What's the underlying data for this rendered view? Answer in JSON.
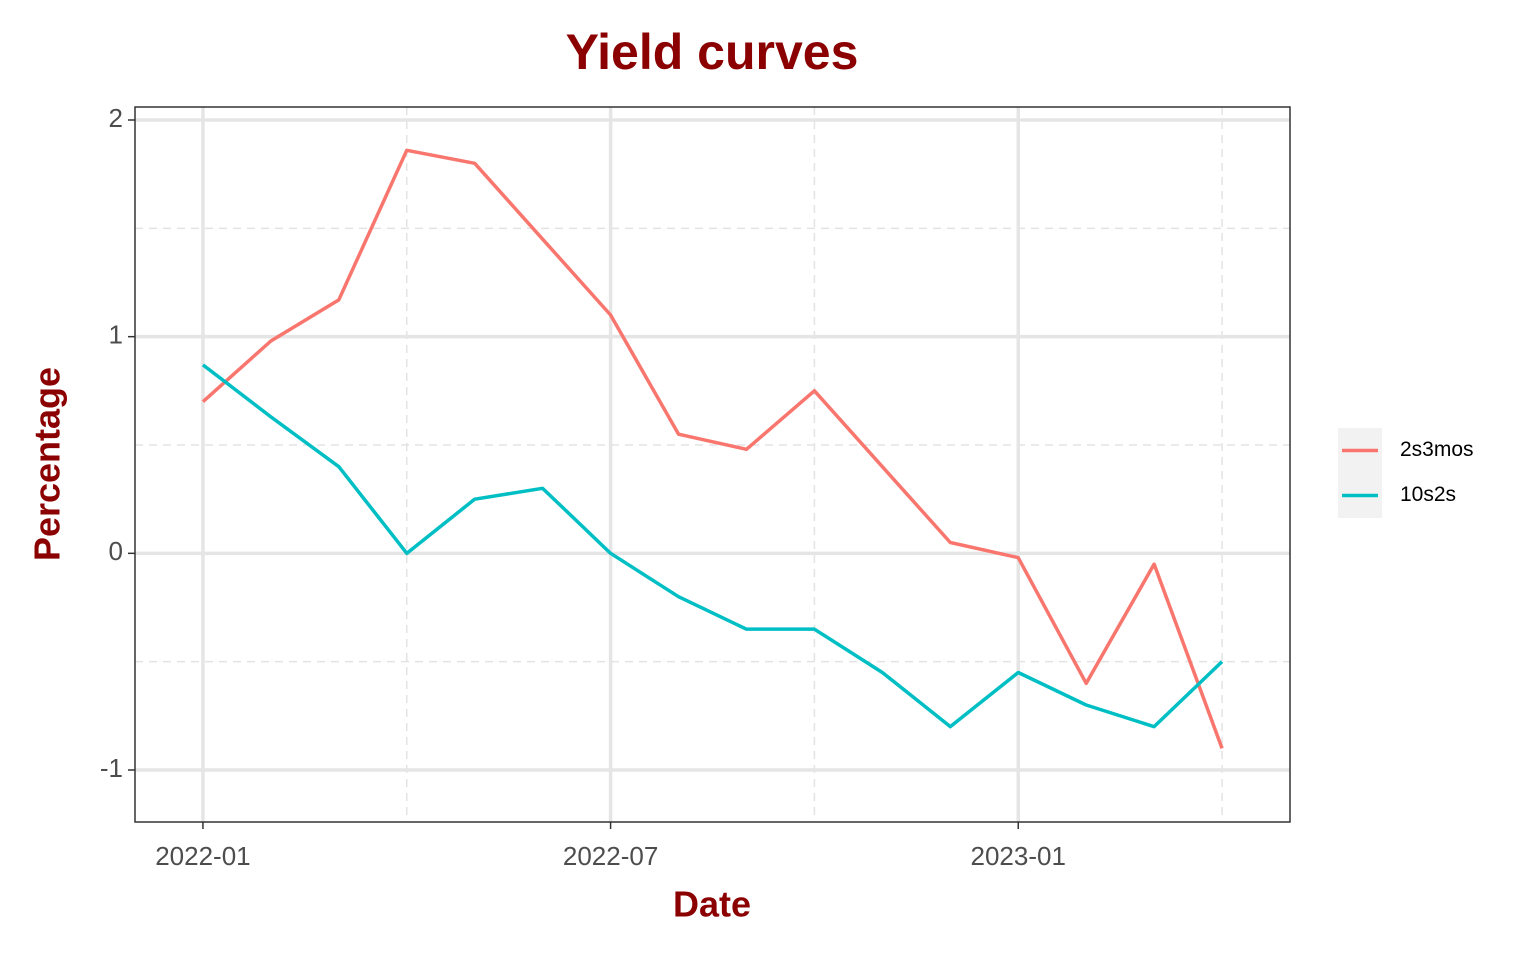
{
  "chart_data": {
    "type": "line",
    "title": "Yield curves",
    "x_label": "Date",
    "y_label": "Percentage",
    "x": [
      "2022-01",
      "2022-02",
      "2022-03",
      "2022-04",
      "2022-05",
      "2022-06",
      "2022-07",
      "2022-08",
      "2022-09",
      "2022-10",
      "2022-11",
      "2022-12",
      "2023-01",
      "2023-02",
      "2023-03",
      "2023-04"
    ],
    "series": [
      {
        "name": "2s3mos",
        "color": "#f8766d",
        "values": [
          0.7,
          0.98,
          1.17,
          1.86,
          1.8,
          1.45,
          1.1,
          0.55,
          0.48,
          0.75,
          0.4,
          0.05,
          -0.02,
          -0.6,
          -0.05,
          -0.9
        ]
      },
      {
        "name": "10s2s",
        "color": "#00bfc4",
        "values": [
          0.87,
          0.63,
          0.4,
          0.0,
          0.25,
          0.3,
          0.0,
          -0.2,
          -0.35,
          -0.35,
          -0.55,
          -0.8,
          -0.55,
          -0.7,
          -0.8,
          -0.5
        ]
      }
    ],
    "xlim": [
      "2021-12",
      "2023-05"
    ],
    "xticks": [
      "2022-01",
      "2022-07",
      "2023-01"
    ],
    "x_minor_grid": [
      "2022-04",
      "2022-10",
      "2023-04"
    ],
    "ylim": [
      -1.24,
      2.06
    ],
    "yticks": [
      -1,
      0,
      1,
      2
    ],
    "y_minor_grid": [
      -0.5,
      0.5,
      1.5
    ],
    "grid": true,
    "legend": "right"
  }
}
